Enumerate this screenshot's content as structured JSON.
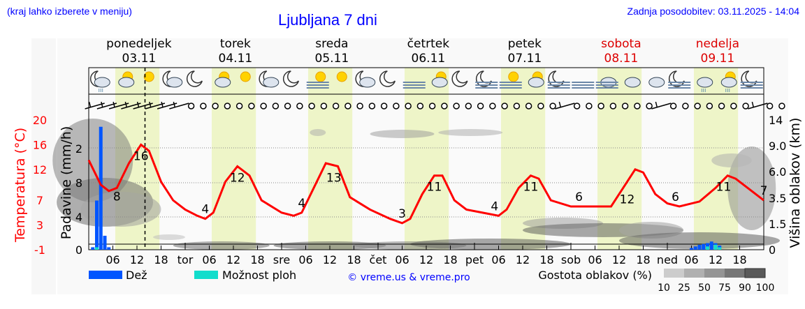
{
  "header": {
    "hint": "(kraj lahko izberete v meniju)",
    "title": "Ljubljana 7 dni",
    "updated": "Zadnja posodobitev: 03.11.2025 - 14:04"
  },
  "days": [
    {
      "name": "ponedeljek",
      "date": "03.11",
      "weekend": false,
      "short": ""
    },
    {
      "name": "torek",
      "date": "04.11",
      "weekend": false,
      "short": "tor"
    },
    {
      "name": "sreda",
      "date": "05.11",
      "weekend": false,
      "short": "sre"
    },
    {
      "name": "četrtek",
      "date": "06.11",
      "weekend": false,
      "short": "čet"
    },
    {
      "name": "petek",
      "date": "07.11",
      "weekend": false,
      "short": "pet"
    },
    {
      "name": "sobota",
      "date": "08.11",
      "weekend": true,
      "short": "sob"
    },
    {
      "name": "nedelja",
      "date": "09.11",
      "weekend": true,
      "short": "ned"
    }
  ],
  "hour_ticks": [
    "06",
    "12",
    "18"
  ],
  "icons": [
    "moon-cloud-rain",
    "sun-cloud",
    "sun",
    "moon-cloud",
    "moon",
    "sun-cloud",
    "sun",
    "moon-cloud",
    "moon",
    "fog-sun",
    "sun",
    "moon-cloud",
    "moon",
    "fog",
    "sun-cloud",
    "moon",
    "moon-fog",
    "fog-sun",
    "sun-cloud",
    "moon-fog",
    "fog",
    "fog-cloud",
    "cloud",
    "cloud",
    "moon-fog",
    "cloud-rain",
    "sun-cloud-rain",
    "moon-fog"
  ],
  "wind": [
    "barb",
    "barb",
    "barb",
    "barb",
    "barb",
    "barb",
    "barb",
    "barb",
    "calm",
    "calm",
    "calm",
    "calm",
    "calm",
    "calm",
    "calm",
    "calm",
    "calm",
    "calm",
    "calm",
    "calm",
    "calm",
    "calm",
    "calm",
    "calm",
    "calm",
    "calm",
    "calm",
    "calm",
    "calm",
    "calm",
    "calm",
    "calm",
    "calm",
    "calm",
    "calm",
    "calm",
    "calm",
    "calm",
    "calm",
    "barb",
    "calm",
    "calm",
    "calm",
    "calm",
    "calm",
    "calm",
    "calm",
    "barb",
    "calm",
    "calm",
    "calm",
    "calm",
    "calm",
    "calm",
    "calm",
    "barb",
    "calm",
    "calm"
  ],
  "colors": {
    "temperature": "#ff0000",
    "rain": "#0055ff",
    "showers": "#11ddcc",
    "daylight": "#eef5c8",
    "weekend": "#dd0000",
    "title": "#0000ff"
  },
  "legend": {
    "rain": "Dež",
    "showers": "Možnost ploh",
    "credit": "© vreme.us & vreme.pro",
    "cloud_density": "Gostota oblakov (%)",
    "cloud_levels": [
      "10",
      "25",
      "50",
      "75",
      "90",
      "100"
    ]
  },
  "chart_data": {
    "type": "line",
    "x_unit": "hours from 03.11 00:00",
    "y_left_label": "Temperatura (°C)",
    "y_left_ticks": [
      "-1",
      "3",
      "7",
      "12",
      "16",
      "20"
    ],
    "y_left_range": [
      -1,
      20
    ],
    "y_precip_label": "Padavine (mm/h)",
    "y_precip_ticks": [
      "0",
      "4",
      "8",
      "2"
    ],
    "y_right_label": "Višina oblakov (km)",
    "y_right_ticks": [
      "0",
      "1.5",
      "3.5",
      "6.0",
      "9.0",
      "14"
    ],
    "grid": true,
    "now_hour": 14,
    "temperature": [
      [
        0,
        13.5
      ],
      [
        3,
        9.5
      ],
      [
        5,
        8.5
      ],
      [
        7,
        9
      ],
      [
        10,
        13
      ],
      [
        13,
        16
      ],
      [
        15,
        15
      ],
      [
        18,
        10
      ],
      [
        21,
        7
      ],
      [
        24,
        5.5
      ],
      [
        27,
        4.5
      ],
      [
        29,
        4
      ],
      [
        31,
        5
      ],
      [
        34,
        10
      ],
      [
        37,
        12.5
      ],
      [
        40,
        11
      ],
      [
        43,
        7
      ],
      [
        48,
        5
      ],
      [
        51,
        4.5
      ],
      [
        53,
        5
      ],
      [
        56,
        9
      ],
      [
        59,
        13
      ],
      [
        62,
        12.5
      ],
      [
        65,
        7.5
      ],
      [
        70,
        5.5
      ],
      [
        75,
        4
      ],
      [
        78,
        3.3
      ],
      [
        80,
        4
      ],
      [
        83,
        8
      ],
      [
        86,
        11
      ],
      [
        88,
        11
      ],
      [
        91,
        7
      ],
      [
        94,
        5.5
      ],
      [
        98,
        5
      ],
      [
        102,
        4.5
      ],
      [
        104,
        5.5
      ],
      [
        107,
        9
      ],
      [
        110,
        11
      ],
      [
        112,
        10.5
      ],
      [
        115,
        7
      ],
      [
        120,
        6
      ],
      [
        126,
        6
      ],
      [
        130,
        6
      ],
      [
        133,
        9
      ],
      [
        136,
        12
      ],
      [
        138,
        11.5
      ],
      [
        141,
        8
      ],
      [
        144,
        6.5
      ],
      [
        147,
        6
      ],
      [
        152,
        6.8
      ],
      [
        156,
        9
      ],
      [
        159,
        11
      ],
      [
        161,
        10.5
      ],
      [
        164,
        9
      ],
      [
        168,
        7
      ]
    ],
    "temperature_labels": [
      [
        7,
        "8"
      ],
      [
        13,
        "16"
      ],
      [
        29,
        "4"
      ],
      [
        37,
        "12"
      ],
      [
        53,
        "4"
      ],
      [
        61,
        "13"
      ],
      [
        78,
        "3"
      ],
      [
        86,
        "11"
      ],
      [
        101,
        "4"
      ],
      [
        110,
        "11"
      ],
      [
        122,
        "6"
      ],
      [
        134,
        "12"
      ],
      [
        146,
        "6"
      ],
      [
        158,
        "11"
      ],
      [
        168,
        "7"
      ]
    ],
    "precipitation": [
      [
        1,
        0.3
      ],
      [
        2,
        6
      ],
      [
        3,
        15
      ],
      [
        4,
        1.7
      ],
      [
        5,
        0.3
      ],
      [
        150,
        0.2
      ],
      [
        151,
        0.4
      ],
      [
        152,
        0.6
      ],
      [
        153,
        0.7
      ],
      [
        154,
        0.8
      ],
      [
        155,
        1.0
      ],
      [
        156,
        0.8
      ],
      [
        157,
        0.5
      ]
    ],
    "showers": [
      [
        2,
        0.3
      ],
      [
        154,
        0.4
      ],
      [
        156,
        0.6
      ],
      [
        157,
        0.3
      ]
    ]
  }
}
